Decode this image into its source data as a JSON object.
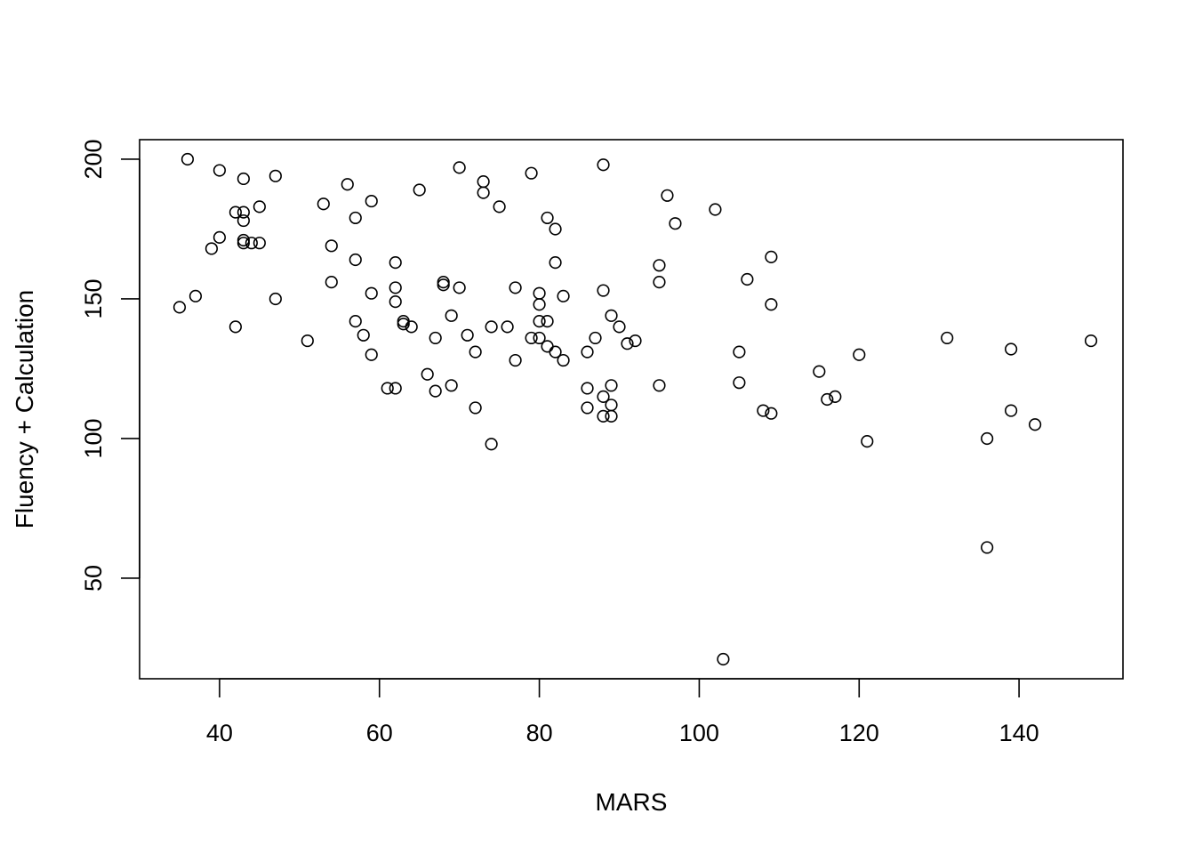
{
  "chart_data": {
    "type": "scatter",
    "title": "",
    "xlabel": "MARS",
    "ylabel": "Fluency + Calculation",
    "xlim": [
      30,
      153
    ],
    "ylim": [
      14,
      207
    ],
    "x_ticks": [
      40,
      60,
      80,
      100,
      120,
      140
    ],
    "y_ticks": [
      50,
      100,
      150,
      200
    ],
    "x_tick_labels": [
      "40",
      "60",
      "80",
      "100",
      "120",
      "140"
    ],
    "y_tick_labels": [
      "50",
      "100",
      "150",
      "200"
    ],
    "grid": false,
    "legend": "none",
    "marker": "open-circle",
    "colors": {
      "points": "#000000",
      "frame": "#000000",
      "background": "#ffffff"
    },
    "points": [
      [
        35,
        147
      ],
      [
        36,
        200
      ],
      [
        37,
        151
      ],
      [
        39,
        168
      ],
      [
        40,
        196
      ],
      [
        40,
        172
      ],
      [
        42,
        181
      ],
      [
        42,
        140
      ],
      [
        43,
        193
      ],
      [
        43,
        181
      ],
      [
        43,
        178
      ],
      [
        43,
        171
      ],
      [
        43,
        170
      ],
      [
        44,
        170
      ],
      [
        45,
        170
      ],
      [
        45,
        183
      ],
      [
        47,
        194
      ],
      [
        47,
        150
      ],
      [
        51,
        135
      ],
      [
        53,
        184
      ],
      [
        54,
        169
      ],
      [
        54,
        156
      ],
      [
        56,
        191
      ],
      [
        57,
        179
      ],
      [
        57,
        164
      ],
      [
        57,
        142
      ],
      [
        58,
        137
      ],
      [
        59,
        185
      ],
      [
        59,
        152
      ],
      [
        59,
        130
      ],
      [
        61,
        118
      ],
      [
        62,
        163
      ],
      [
        62,
        154
      ],
      [
        62,
        149
      ],
      [
        62,
        118
      ],
      [
        63,
        142
      ],
      [
        63,
        141
      ],
      [
        64,
        140
      ],
      [
        65,
        189
      ],
      [
        66,
        123
      ],
      [
        67,
        136
      ],
      [
        67,
        117
      ],
      [
        68,
        156
      ],
      [
        68,
        155
      ],
      [
        69,
        144
      ],
      [
        69,
        119
      ],
      [
        70,
        197
      ],
      [
        70,
        154
      ],
      [
        71,
        137
      ],
      [
        72,
        131
      ],
      [
        72,
        111
      ],
      [
        73,
        192
      ],
      [
        73,
        188
      ],
      [
        74,
        140
      ],
      [
        74,
        98
      ],
      [
        75,
        183
      ],
      [
        76,
        140
      ],
      [
        77,
        154
      ],
      [
        77,
        128
      ],
      [
        79,
        195
      ],
      [
        79,
        136
      ],
      [
        80,
        152
      ],
      [
        80,
        148
      ],
      [
        80,
        142
      ],
      [
        80,
        136
      ],
      [
        81,
        179
      ],
      [
        81,
        142
      ],
      [
        81,
        133
      ],
      [
        82,
        175
      ],
      [
        82,
        163
      ],
      [
        82,
        131
      ],
      [
        83,
        151
      ],
      [
        83,
        128
      ],
      [
        86,
        131
      ],
      [
        86,
        118
      ],
      [
        86,
        111
      ],
      [
        87,
        136
      ],
      [
        88,
        198
      ],
      [
        88,
        153
      ],
      [
        88,
        115
      ],
      [
        88,
        108
      ],
      [
        89,
        144
      ],
      [
        89,
        119
      ],
      [
        89,
        112
      ],
      [
        89,
        108
      ],
      [
        90,
        140
      ],
      [
        91,
        134
      ],
      [
        92,
        135
      ],
      [
        95,
        162
      ],
      [
        95,
        156
      ],
      [
        95,
        119
      ],
      [
        96,
        187
      ],
      [
        97,
        177
      ],
      [
        102,
        182
      ],
      [
        103,
        21
      ],
      [
        105,
        131
      ],
      [
        105,
        120
      ],
      [
        106,
        157
      ],
      [
        108,
        110
      ],
      [
        109,
        165
      ],
      [
        109,
        148
      ],
      [
        109,
        109
      ],
      [
        115,
        124
      ],
      [
        116,
        114
      ],
      [
        117,
        115
      ],
      [
        120,
        130
      ],
      [
        121,
        99
      ],
      [
        131,
        136
      ],
      [
        136,
        100
      ],
      [
        136,
        61
      ],
      [
        139,
        132
      ],
      [
        139,
        110
      ],
      [
        142,
        105
      ],
      [
        149,
        135
      ]
    ]
  }
}
